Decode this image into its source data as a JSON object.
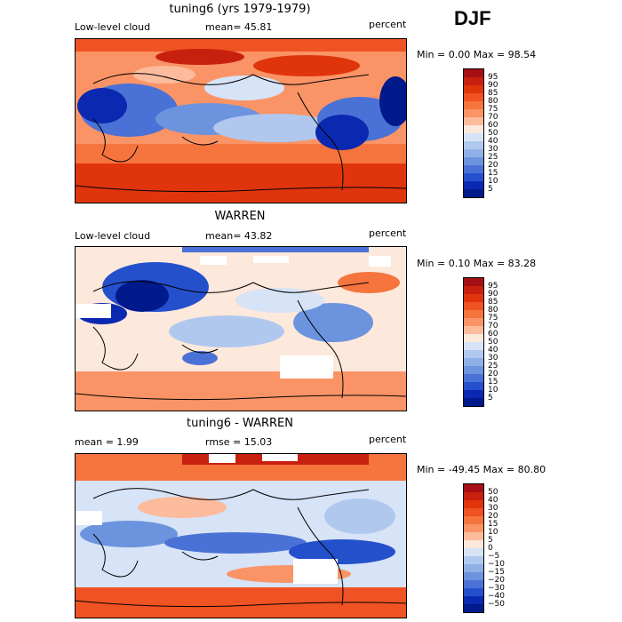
{
  "season": "DJF",
  "panels": [
    {
      "title": "tuning6 (yrs 1979-1979)",
      "left": "Low-level cloud",
      "mid": "mean=  45.81",
      "right": "percent",
      "stats": "Min =    0.00 Max =   98.54",
      "cbar_labels": [
        "95",
        "90",
        "85",
        "80",
        "75",
        "70",
        "60",
        "50",
        "40",
        "30",
        "25",
        "20",
        "15",
        "10",
        "5"
      ],
      "cbar_colors": [
        "#a50f15",
        "#c8200e",
        "#e0350c",
        "#ef5223",
        "#f6743d",
        "#fa9466",
        "#fcbb9d",
        "#fde8dc",
        "#d7e3f6",
        "#b0c8ee",
        "#8fb0e6",
        "#6b93de",
        "#4a72d6",
        "#2450cc",
        "#0b28b0",
        "#001a8c"
      ]
    },
    {
      "title": "WARREN",
      "left": "Low-level cloud",
      "mid": "mean=  43.82",
      "right": "percent",
      "stats": "Min =    0.10 Max =   83.28",
      "cbar_labels": [
        "95",
        "90",
        "85",
        "80",
        "75",
        "70",
        "60",
        "50",
        "40",
        "30",
        "25",
        "20",
        "15",
        "10",
        "5"
      ],
      "cbar_colors": [
        "#a50f15",
        "#c8200e",
        "#e0350c",
        "#ef5223",
        "#f6743d",
        "#fa9466",
        "#fcbb9d",
        "#fde8dc",
        "#d7e3f6",
        "#b0c8ee",
        "#8fb0e6",
        "#6b93de",
        "#4a72d6",
        "#2450cc",
        "#0b28b0",
        "#001a8c"
      ]
    },
    {
      "title": "tuning6 - WARREN",
      "left": "mean =    1.99",
      "mid": "rmse =  15.03",
      "right": "percent",
      "stats": "Min = -49.45 Max =   80.80",
      "cbar_labels": [
        "50",
        "40",
        "30",
        "20",
        "15",
        "10",
        "5",
        "0",
        "−5",
        "−10",
        "−15",
        "−20",
        "−30",
        "−40",
        "−50"
      ],
      "cbar_colors": [
        "#a50f15",
        "#c8200e",
        "#e0350c",
        "#ef5223",
        "#f6743d",
        "#fa9466",
        "#fcbb9d",
        "#fde8dc",
        "#d7e3f6",
        "#b0c8ee",
        "#8fb0e6",
        "#6b93de",
        "#4a72d6",
        "#2450cc",
        "#0b28b0",
        "#001a8c"
      ]
    }
  ]
}
